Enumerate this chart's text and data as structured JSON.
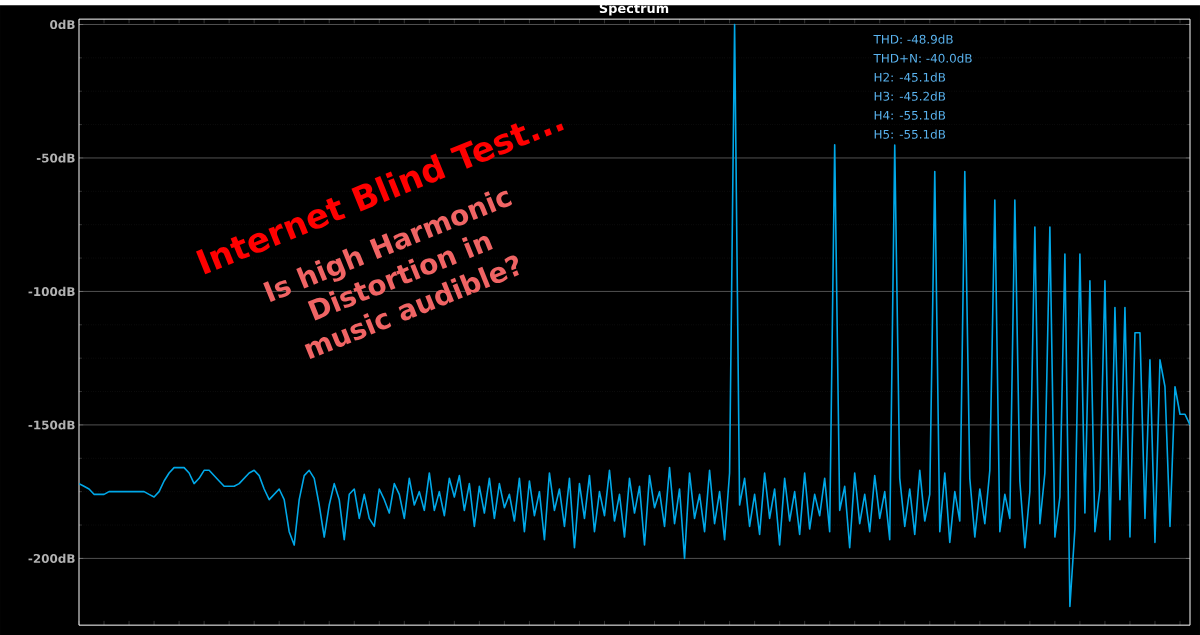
{
  "chart_data": {
    "type": "line",
    "title": "Spectrum",
    "annotations": [
      "Internet Blind Test...",
      "Is high Harmonic Distortion in music audible?",
      "THD:   -48.9dB",
      "THD+N:   -40.0dB",
      "H2: -45.1dB",
      "H3: -45.2dB",
      "H4: -55.1dB",
      "H5: -55.1dB"
    ],
    "categories": [
      null,
      null,
      null,
      null,
      null,
      null,
      null,
      null,
      null,
      null,
      null,
      null,
      null,
      null,
      null,
      null,
      null,
      null,
      null,
      null,
      null,
      null,
      null,
      null,
      null,
      null,
      null,
      null,
      null,
      null,
      null,
      null,
      null,
      null,
      null,
      null,
      null,
      null,
      null,
      null,
      null,
      null,
      null,
      null,
      null,
      null,
      null,
      null,
      null,
      null,
      null,
      null,
      null,
      null,
      null,
      null,
      null,
      null,
      null,
      null,
      null,
      null,
      null,
      null,
      null,
      null,
      null,
      null,
      null,
      null,
      null,
      null,
      null,
      null,
      null,
      null,
      null,
      null,
      null,
      null,
      null,
      null,
      null,
      null,
      null,
      null,
      null,
      null,
      null,
      null,
      null,
      null,
      null,
      null,
      null,
      null,
      null,
      null,
      null,
      null,
      null,
      null,
      null,
      null,
      null,
      null,
      null,
      null,
      null,
      null,
      null,
      null,
      null,
      null,
      null,
      null,
      null,
      null,
      null,
      null,
      null,
      null,
      null,
      null,
      null,
      null,
      null,
      null,
      null,
      null,
      null,
      null,
      null,
      null,
      null,
      null,
      null,
      null,
      null,
      null,
      null,
      null,
      null,
      null,
      null,
      null,
      null,
      null,
      null,
      null,
      null,
      null,
      null,
      null,
      null,
      null,
      null,
      null,
      null,
      null,
      null,
      null,
      null,
      null,
      null,
      null,
      null,
      null,
      null,
      null,
      null,
      null,
      null,
      null,
      null,
      null,
      null,
      null,
      null,
      null,
      null,
      null,
      null,
      null,
      null,
      null,
      null,
      null,
      null,
      null,
      null,
      null,
      null,
      null,
      null,
      null,
      null,
      null,
      null,
      null,
      null,
      null,
      null,
      null,
      null,
      null,
      null,
      null,
      null,
      null,
      null,
      null,
      null,
      null,
      null,
      null,
      null,
      null,
      null,
      null,
      null,
      null,
      null
    ],
    "values": [
      -172,
      -173,
      -174,
      -176,
      -176,
      -176,
      -175,
      -175,
      -175,
      -175,
      -175,
      -175,
      -175,
      -175,
      -176,
      -177,
      -175,
      -171,
      -168,
      -166,
      -166,
      -166,
      -168,
      -172,
      -170,
      -167,
      -167,
      -169,
      -171,
      -173,
      -173,
      -173,
      -172,
      -170,
      -168,
      -167,
      -169,
      -174,
      -178,
      -176,
      -174,
      -178,
      -190,
      -195,
      -178,
      -169,
      -167,
      -170,
      -180,
      -192,
      -180,
      -172,
      -178,
      -193,
      -176,
      -174,
      -185,
      -176,
      -185,
      -188,
      -174,
      -178,
      -183,
      -172,
      -176,
      -185,
      -170,
      -180,
      -175,
      -182,
      -168,
      -182,
      -175,
      -184,
      -170,
      -177,
      -169,
      -182,
      -172,
      -188,
      -173,
      -183,
      -170,
      -185,
      -172,
      -181,
      -176,
      -186,
      -170,
      -190,
      -171,
      -184,
      -175,
      -193,
      -168,
      -182,
      -174,
      -188,
      -170,
      -196,
      -172,
      -185,
      -169,
      -190,
      -175,
      -184,
      -167,
      -186,
      -176,
      -192,
      -170,
      -183,
      -173,
      -195,
      -169,
      -181,
      -175,
      -188,
      -166,
      -187,
      -174,
      -200,
      -168,
      -185,
      -176,
      -190,
      -167,
      -187,
      -175,
      -193,
      -168,
      0,
      -180,
      -170,
      -188,
      -176,
      -191,
      -168,
      -185,
      -174,
      -195,
      -170,
      -186,
      -175,
      -191,
      -168,
      -189,
      -176,
      -184,
      -170,
      -190,
      -45.1,
      -182,
      -173,
      -196,
      -168,
      -187,
      -176,
      -190,
      -169,
      -185,
      -175,
      -193,
      -45.2,
      -170,
      -188,
      -174,
      -191,
      -167,
      -186,
      -176,
      -55.1,
      -190,
      -168,
      -194,
      -175,
      -186,
      -55.1,
      -170,
      -192,
      -174,
      -187,
      -167,
      -65.8,
      -190,
      -176,
      -185,
      -65.8,
      -171,
      -196,
      -175,
      -75.9,
      -187,
      -168,
      -75.9,
      -192,
      -177,
      -86,
      -218,
      -189,
      -86,
      -183,
      -96,
      -190,
      -174,
      -96,
      -193,
      -106,
      -178,
      -106,
      -192,
      -115.5,
      -115.5,
      -185,
      -125.6,
      -194,
      -125.6,
      -135.7,
      -188,
      -135.7,
      -146,
      -146,
      -150
    ],
    "color": "#00a8e8",
    "ylim": [
      -225,
      2
    ],
    "yticks": [
      {
        "value": 0,
        "label": "0dB"
      },
      {
        "value": -50,
        "label": "-50dB"
      },
      {
        "value": -100,
        "label": "-100dB"
      },
      {
        "value": -150,
        "label": "-150dB"
      },
      {
        "value": -200,
        "label": "-200dB"
      }
    ],
    "grid": "y"
  }
}
